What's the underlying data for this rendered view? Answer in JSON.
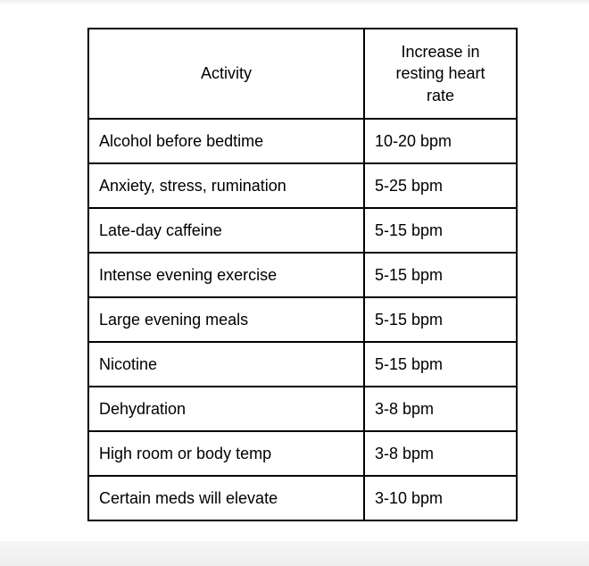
{
  "page": {
    "background_color": "#ffffff",
    "bottom_strip_color": "#eeeeee",
    "border_color": "#000000",
    "text_color": "#000000"
  },
  "table": {
    "headers": [
      "Activity",
      "Increase in resting heart rate"
    ],
    "rows": [
      {
        "activity": "Alcohol before bedtime",
        "increase": "10-20 bpm"
      },
      {
        "activity": "Anxiety, stress, rumination",
        "increase": "5-25 bpm"
      },
      {
        "activity": "Late-day caffeine",
        "increase": "5-15 bpm"
      },
      {
        "activity": "Intense evening exercise",
        "increase": "5-15 bpm"
      },
      {
        "activity": "Large evening meals",
        "increase": "5-15 bpm"
      },
      {
        "activity": "Nicotine",
        "increase": "5-15 bpm"
      },
      {
        "activity": "Dehydration",
        "increase": "3-8 bpm"
      },
      {
        "activity": "High room or body temp",
        "increase": "3-8 bpm"
      },
      {
        "activity": "Certain meds will elevate",
        "increase": "3-10 bpm"
      }
    ]
  },
  "chart_data": {
    "type": "table",
    "title": "",
    "columns": [
      "Activity",
      "Increase in resting heart rate"
    ],
    "rows": [
      [
        "Alcohol before bedtime",
        "10-20 bpm"
      ],
      [
        "Anxiety, stress, rumination",
        "5-25 bpm"
      ],
      [
        "Late-day caffeine",
        "5-15 bpm"
      ],
      [
        "Intense evening exercise",
        "5-15 bpm"
      ],
      [
        "Large evening meals",
        "5-15 bpm"
      ],
      [
        "Nicotine",
        "5-15 bpm"
      ],
      [
        "Dehydration",
        "3-8 bpm"
      ],
      [
        "High room or body temp",
        "3-8 bpm"
      ],
      [
        "Certain meds will elevate",
        "3-10 bpm"
      ]
    ]
  }
}
